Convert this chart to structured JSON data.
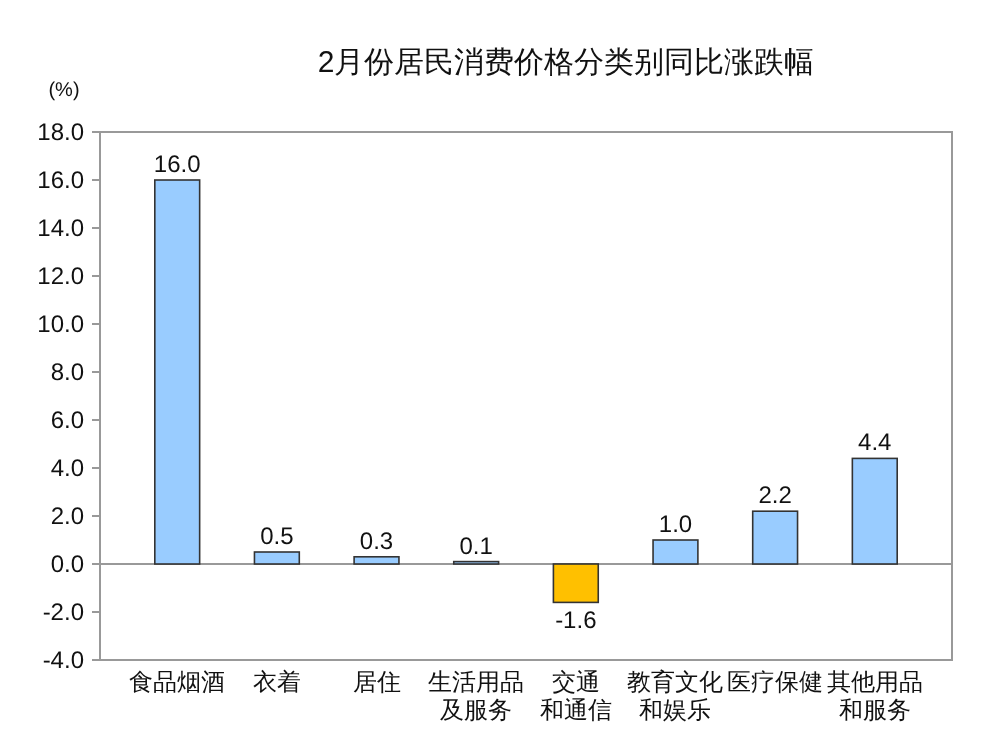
{
  "chart_data": {
    "type": "bar",
    "title": "2月份居民消费价格分类别同比涨跌幅",
    "ylabel": "(%)",
    "categories": [
      "食品烟酒",
      "衣着",
      "居住",
      "生活用品及服务",
      "交通和通信",
      "教育文化和娱乐",
      "医疗保健",
      "其他用品和服务"
    ],
    "values": [
      16.0,
      0.5,
      0.3,
      0.1,
      -1.6,
      1.0,
      2.2,
      4.4
    ],
    "colors": [
      "#99ccff",
      "#99ccff",
      "#99ccff",
      "#99ccff",
      "#ffc000",
      "#99ccff",
      "#99ccff",
      "#99ccff"
    ],
    "value_labels": [
      "16.0",
      "0.5",
      "0.3",
      "0.1",
      "-1.6",
      "1.0",
      "2.2",
      "4.4"
    ],
    "ylim": [
      -4,
      18
    ],
    "yticks": [
      {
        "value": -4,
        "label": "-4.0"
      },
      {
        "value": -2,
        "label": "-2.0"
      },
      {
        "value": 0,
        "label": "0.0"
      },
      {
        "value": 2,
        "label": "2.0"
      },
      {
        "value": 4,
        "label": "4.0"
      },
      {
        "value": 6,
        "label": "6.0"
      },
      {
        "value": 8,
        "label": "8.0"
      },
      {
        "value": 10,
        "label": "10.0"
      },
      {
        "value": 12,
        "label": "12.0"
      },
      {
        "value": 14,
        "label": "14.0"
      },
      {
        "value": 16,
        "label": "16.0"
      },
      {
        "value": 18,
        "label": "18.0"
      }
    ]
  }
}
